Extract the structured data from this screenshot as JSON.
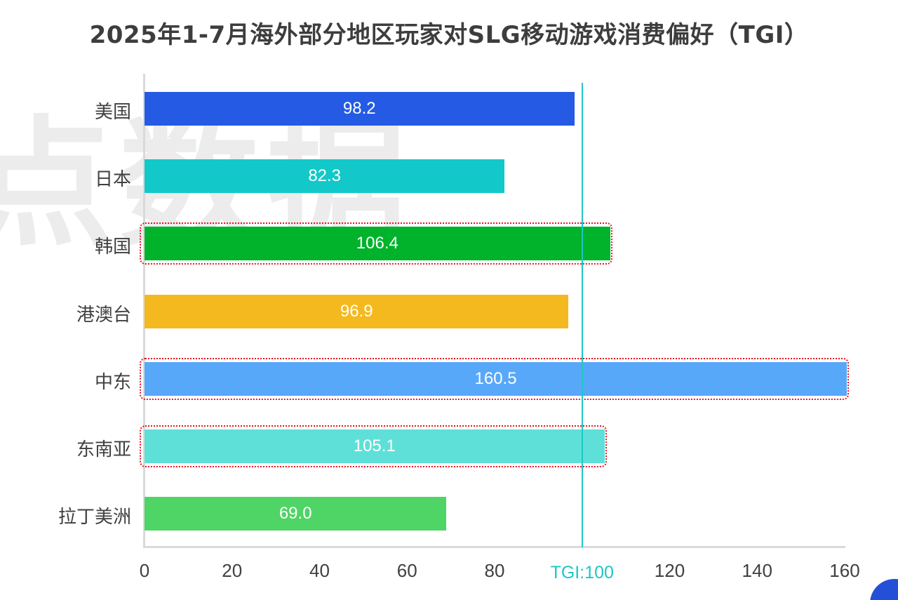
{
  "title": "2025年1-7月海外部分地区玩家对SLG移动游戏消费偏好（TGI）",
  "watermark": "点数据",
  "chart_data": {
    "type": "bar",
    "orientation": "horizontal",
    "title": "2025年1-7月海外部分地区玩家对SLG移动游戏消费偏好（TGI）",
    "xlabel": "",
    "ylabel": "",
    "xlim": [
      0,
      160
    ],
    "x_ticks": [
      "0",
      "20",
      "40",
      "60",
      "80",
      "TGI:100",
      "120",
      "140",
      "160"
    ],
    "categories": [
      "美国",
      "日本",
      "韩国",
      "港澳台",
      "中东",
      "东南亚",
      "拉丁美洲"
    ],
    "values": [
      98.2,
      82.3,
      106.4,
      96.9,
      160.5,
      105.1,
      69.0
    ],
    "value_labels": [
      "98.2",
      "82.3",
      "106.4",
      "96.9",
      "160.5",
      "105.1",
      "69.0"
    ],
    "colors": [
      "#245ae4",
      "#13c8c8",
      "#00b32a",
      "#f5b920",
      "#58a8fa",
      "#5ee0d8",
      "#4fd466"
    ],
    "highlighted": [
      "韩国",
      "中东",
      "东南亚"
    ],
    "reference_line": {
      "value": 100,
      "label": "TGI:100",
      "color": "#1ec6c6"
    },
    "grid": false,
    "legend": "none"
  }
}
